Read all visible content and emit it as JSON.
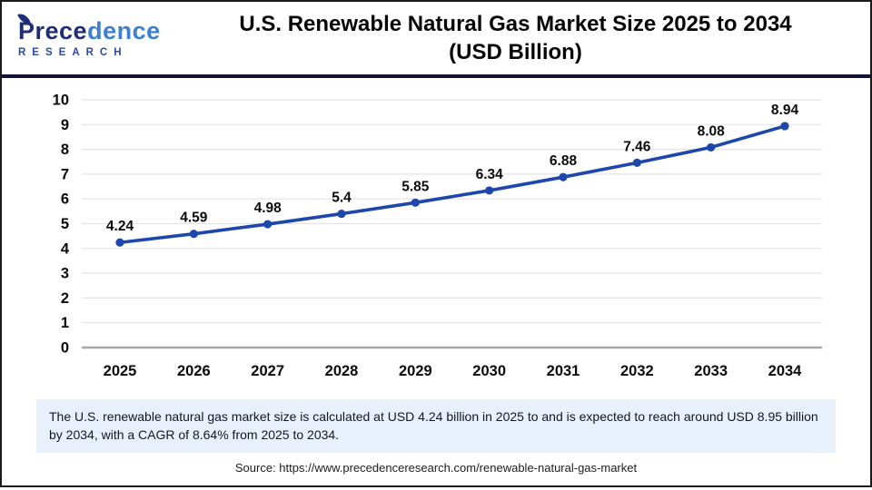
{
  "header": {
    "logo": {
      "brand_dark": "Prece",
      "brand_light": "dence",
      "subtitle": "RESEARCH"
    },
    "title_line1": "U.S. Renewable Natural Gas Market Size 2025 to 2034",
    "title_line2": "(USD Billion)"
  },
  "chart_data": {
    "type": "line",
    "title": "U.S. Renewable Natural Gas Market Size 2025 to 2034 (USD Billion)",
    "categories": [
      "2025",
      "2026",
      "2027",
      "2028",
      "2029",
      "2030",
      "2031",
      "2032",
      "2033",
      "2034"
    ],
    "values": [
      4.24,
      4.59,
      4.98,
      5.4,
      5.85,
      6.34,
      6.88,
      7.46,
      8.08,
      8.94
    ],
    "point_labels": [
      "4.24",
      "4.59",
      "4.98",
      "5.4",
      "5.85",
      "6.34",
      "6.88",
      "7.46",
      "8.08",
      "8.94"
    ],
    "xlabel": "",
    "ylabel": "",
    "ylim": [
      0,
      10
    ],
    "yticks": [
      0,
      1,
      2,
      3,
      4,
      5,
      6,
      7,
      8,
      9,
      10
    ],
    "grid": true,
    "legend": "none",
    "line_color": "#1d47ad",
    "marker_color": "#1d47ad",
    "label_color": "#0a0a0a",
    "gridline_color": "#e4e4e4",
    "axis_color": "#a8a8a8"
  },
  "footnote": "The U.S. renewable natural gas market size is calculated at USD 4.24 billion in 2025 to and is expected to reach around USD 8.95 billion by 2034, with a CAGR of 8.64% from 2025 to 2034.",
  "source": "Source: https://www.precedenceresearch.com/renewable-natural-gas-market",
  "colors": {
    "divider": "#101336",
    "footnote_bg": "#e8f1fb",
    "frame_border": "#1a1a1a"
  }
}
